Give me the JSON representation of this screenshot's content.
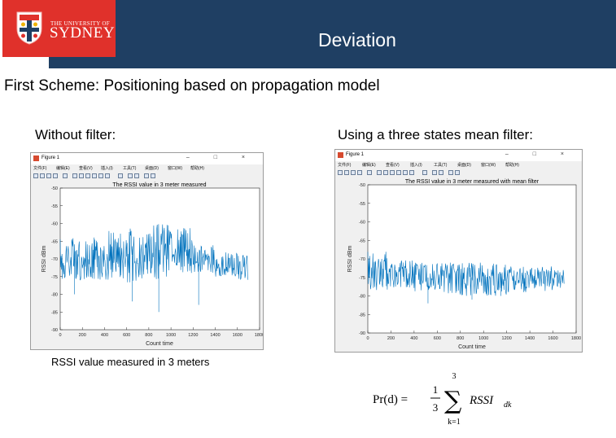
{
  "header": {
    "university_line1": "THE UNIVERSITY OF",
    "university_line2": "SYDNEY",
    "title": "Deviation",
    "bar_color": "#1f3f63",
    "logo_color": "#e0312b"
  },
  "subtitle": "First Scheme: Positioning based on propagation model",
  "left": {
    "label": "Without filter:",
    "caption": "RSSI value measured in 3 meters",
    "window_title": "Figure 1"
  },
  "right": {
    "label": "Using a three states mean filter:",
    "window_title": "Figure 1"
  },
  "menu_items": [
    "文件(F)",
    "编辑(E)",
    "查看(V)",
    "插入(I)",
    "工具(T)",
    "桌面(D)",
    "窗口(W)",
    "帮助(H)"
  ],
  "window_controls": "– □ ×",
  "formula": {
    "lhs": "Pr(d) =",
    "numerator": "1",
    "denominator": "3",
    "sigma": "∑",
    "upper": "3",
    "lower": "k=1",
    "term": "RSSI",
    "sub": "dk"
  },
  "chart_data": [
    {
      "type": "line",
      "title": "The RSSI value in 3 meter measured",
      "xlabel": "Count time",
      "ylabel": "RSSI dBm",
      "xlim": [
        0,
        1800
      ],
      "ylim": [
        -90,
        -50
      ],
      "xticks": [
        0,
        200,
        400,
        600,
        800,
        1000,
        1200,
        1400,
        1600,
        1800
      ],
      "yticks": [
        -50,
        -55,
        -60,
        -65,
        -70,
        -75,
        -80,
        -85,
        -90
      ],
      "x_range": [
        0,
        1700
      ],
      "series": [
        {
          "color": "#0072bd",
          "segments": [
            {
              "x": [
                0,
                200
              ],
              "lo": -76,
              "hi": -64,
              "mid": -70
            },
            {
              "x": [
                200,
                400
              ],
              "lo": -76,
              "hi": -63,
              "mid": -70
            },
            {
              "x": [
                400,
                600
              ],
              "lo": -76,
              "hi": -62,
              "mid": -69
            },
            {
              "x": [
                600,
                800
              ],
              "lo": -77,
              "hi": -61,
              "mid": -69
            },
            {
              "x": [
                800,
                1000
              ],
              "lo": -76,
              "hi": -60,
              "mid": -68
            },
            {
              "x": [
                1000,
                1200
              ],
              "lo": -75,
              "hi": -61,
              "mid": -68
            },
            {
              "x": [
                1200,
                1400
              ],
              "lo": -74,
              "hi": -66,
              "mid": -71
            },
            {
              "x": [
                1400,
                1600
              ],
              "lo": -75,
              "hi": -68,
              "mid": -72
            },
            {
              "x": [
                1600,
                1700
              ],
              "lo": -76,
              "hi": -69,
              "mid": -73
            }
          ],
          "spikes": [
            {
              "x": 890,
              "y": -85
            },
            {
              "x": 1250,
              "y": -83
            },
            {
              "x": 650,
              "y": -82
            },
            {
              "x": 130,
              "y": -80
            }
          ]
        }
      ]
    },
    {
      "type": "line",
      "title": "The RSSI value in 3 meter measured with mean filter",
      "xlabel": "Count time",
      "ylabel": "RSSI dBm",
      "xlim": [
        0,
        1800
      ],
      "ylim": [
        -90,
        -50
      ],
      "xticks": [
        0,
        200,
        400,
        600,
        800,
        1000,
        1200,
        1400,
        1600,
        1800
      ],
      "yticks": [
        -50,
        -55,
        -60,
        -65,
        -70,
        -75,
        -80,
        -85,
        -90
      ],
      "x_range": [
        0,
        1700
      ],
      "series": [
        {
          "color": "#0072bd",
          "segments": [
            {
              "x": [
                0,
                200
              ],
              "lo": -79,
              "hi": -68,
              "mid": -74
            },
            {
              "x": [
                200,
                400
              ],
              "lo": -78,
              "hi": -70,
              "mid": -74
            },
            {
              "x": [
                400,
                600
              ],
              "lo": -79,
              "hi": -71,
              "mid": -75
            },
            {
              "x": [
                600,
                800
              ],
              "lo": -80,
              "hi": -71,
              "mid": -75
            },
            {
              "x": [
                800,
                1000
              ],
              "lo": -80,
              "hi": -71,
              "mid": -75
            },
            {
              "x": [
                1000,
                1200
              ],
              "lo": -80,
              "hi": -71,
              "mid": -75
            },
            {
              "x": [
                1200,
                1400
              ],
              "lo": -79,
              "hi": -72,
              "mid": -75
            },
            {
              "x": [
                1400,
                1600
              ],
              "lo": -79,
              "hi": -72,
              "mid": -75
            },
            {
              "x": [
                1600,
                1700
              ],
              "lo": -78,
              "hi": -73,
              "mid": -75
            }
          ],
          "spikes": [
            {
              "x": 520,
              "y": -82
            },
            {
              "x": 900,
              "y": -81
            },
            {
              "x": 1150,
              "y": -80
            }
          ]
        }
      ]
    }
  ]
}
